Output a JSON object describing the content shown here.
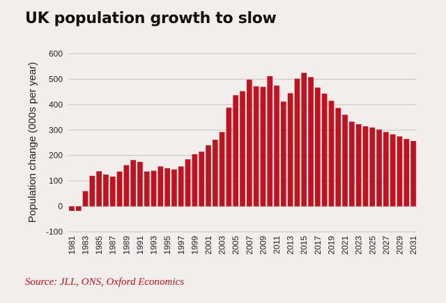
{
  "title": "UK population growth to slow",
  "source": "Source: JLL, ONS, Oxford Economics",
  "colors": {
    "bar": "#c1121f",
    "grid": "#c9c2bc",
    "background": "#f1eeeb",
    "source": "#c1121f"
  },
  "chart_data": {
    "type": "bar",
    "title": "UK population growth to slow",
    "xlabel": "",
    "ylabel": "Population change (000s per year)",
    "ylim": [
      -100,
      600
    ],
    "yticks": [
      -100,
      0,
      100,
      200,
      300,
      400,
      500,
      600
    ],
    "grid": true,
    "xtick_labels": [
      "1981",
      "1983",
      "1985",
      "1987",
      "1989",
      "1991",
      "1993",
      "1995",
      "1997",
      "1999",
      "2001",
      "2003",
      "2005",
      "2007",
      "2009",
      "2011",
      "2013",
      "2015",
      "2017",
      "2019",
      "2021",
      "2023",
      "2025",
      "2027",
      "2029",
      "2031"
    ],
    "categories": [
      "1981",
      "1982",
      "1983",
      "1984",
      "1985",
      "1986",
      "1987",
      "1988",
      "1989",
      "1990",
      "1991",
      "1992",
      "1993",
      "1994",
      "1995",
      "1996",
      "1997",
      "1998",
      "1999",
      "2000",
      "2001",
      "2002",
      "2003",
      "2004",
      "2005",
      "2006",
      "2007",
      "2008",
      "2009",
      "2010",
      "2011",
      "2012",
      "2013",
      "2014",
      "2015",
      "2016",
      "2017",
      "2018",
      "2019",
      "2020",
      "2021",
      "2022",
      "2023",
      "2024",
      "2025",
      "2026",
      "2027",
      "2028",
      "2029",
      "2030",
      "2031"
    ],
    "values": [
      -18,
      -18,
      60,
      120,
      138,
      125,
      117,
      137,
      162,
      182,
      175,
      137,
      140,
      157,
      150,
      145,
      157,
      185,
      205,
      215,
      240,
      262,
      292,
      388,
      437,
      453,
      498,
      472,
      470,
      512,
      475,
      412,
      445,
      502,
      525,
      508,
      467,
      443,
      415,
      387,
      360,
      333,
      323,
      315,
      310,
      302,
      292,
      283,
      275,
      265,
      257
    ]
  }
}
